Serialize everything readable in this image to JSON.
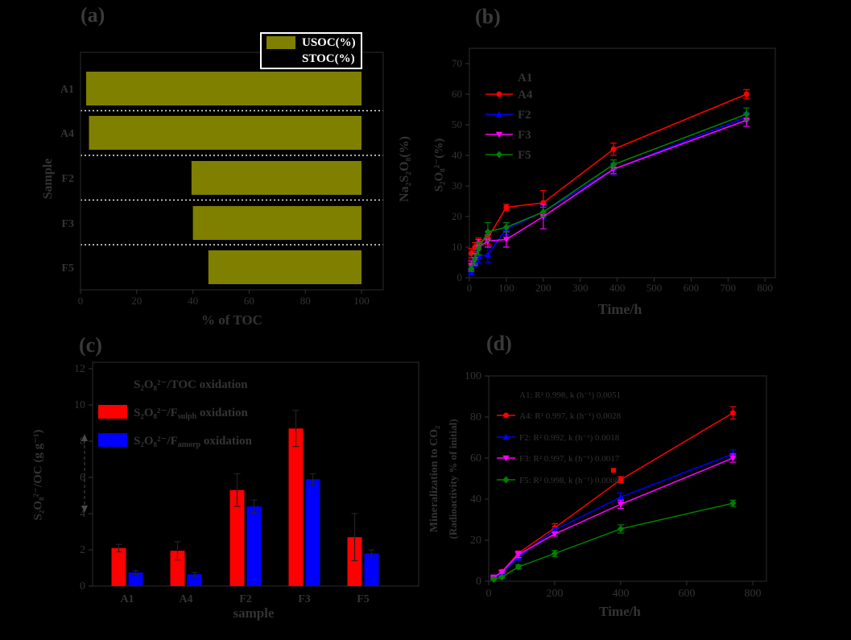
{
  "page": {
    "background": "#000000",
    "text_color": "#333333",
    "grid_color": "#e8e8e8"
  },
  "chart_data": [
    {
      "id": "a",
      "type": "bar",
      "tag": "(a)",
      "xlabel": "% of TOC",
      "ylabel": "Sample",
      "ylabel_right": "Na₂S₂O₈(%)",
      "categories": [
        "A1",
        "A4",
        "F2",
        "F3",
        "F5"
      ],
      "xlim": [
        0,
        100
      ],
      "xticks": [
        0,
        20,
        40,
        60,
        80,
        100
      ],
      "grid": "white dotted separators between categories, legend framed white top-right",
      "legend": [
        {
          "label": "USOC(%)",
          "color": "#7f7f00"
        },
        {
          "label": "STOC(%)",
          "color": "#000000"
        }
      ],
      "series": [
        {
          "name": "STOC(%)",
          "color": "#000000",
          "values": [
            2,
            3,
            39.5,
            40,
            45.5
          ]
        },
        {
          "name": "USOC(%)",
          "color": "#7f7f00",
          "values": [
            98,
            97,
            60.5,
            60,
            54.5
          ]
        }
      ]
    },
    {
      "id": "b",
      "type": "line",
      "tag": "(b)",
      "xlabel": "Time/h",
      "ylabel": "S₂O₈²⁻(%)",
      "xlim": [
        0,
        830
      ],
      "xticks": [
        0,
        100,
        200,
        300,
        400,
        500,
        600,
        700,
        800
      ],
      "ylim": [
        0,
        72
      ],
      "yticks": [
        0,
        10,
        20,
        30,
        40,
        50,
        60,
        70
      ],
      "legend_position": "upper-left inside plot",
      "x": [
        5,
        15,
        25,
        50,
        100,
        200,
        390,
        750
      ],
      "series": [
        {
          "name": "A1",
          "color": "#000000",
          "marker": "square",
          "y": [],
          "err": []
        },
        {
          "name": "A4",
          "color": "#ff0000",
          "marker": "circle",
          "y": [
            8,
            10,
            11.5,
            13,
            23,
            24.5,
            42,
            60
          ],
          "err": [
            1.5,
            1.5,
            1.5,
            2,
            1,
            4,
            2,
            1.5
          ]
        },
        {
          "name": "F2",
          "color": "#0000ff",
          "marker": "triangle-up",
          "y": [
            2,
            5,
            7,
            7.5,
            16,
            21.5,
            35.5,
            52.5
          ],
          "err": [
            1,
            1.5,
            2,
            2.5,
            2,
            2,
            2,
            1.5
          ]
        },
        {
          "name": "F3",
          "color": "#ff00ff",
          "marker": "triangle-down",
          "y": [
            4,
            6,
            10,
            12,
            12.5,
            20,
            35.5,
            51.5
          ],
          "err": [
            1.5,
            2,
            2.5,
            2,
            2.5,
            4,
            1.5,
            2
          ]
        },
        {
          "name": "F5",
          "color": "#008000",
          "marker": "diamond",
          "y": [
            3,
            6,
            9.5,
            15,
            16.5,
            21.5,
            37,
            53.5
          ],
          "err": [
            1,
            1.5,
            2,
            3,
            1.5,
            1.5,
            1.5,
            2
          ]
        }
      ]
    },
    {
      "id": "c",
      "type": "bar",
      "tag": "(c)",
      "xlabel": "sample",
      "ylabel": "S₂O₈²⁻/OC (g g⁻¹)",
      "categories": [
        "A1",
        "A4",
        "F2",
        "F3",
        "F5"
      ],
      "ylim": [
        0,
        12
      ],
      "yticks": [
        0,
        2,
        4,
        6,
        8,
        10,
        12
      ],
      "legend": [
        {
          "pre": "S₂O₈²⁻/TOC oxidation",
          "sub": "",
          "post": "",
          "color": "#000000"
        },
        {
          "pre": "S₂O₈²⁻/F",
          "sub": "sulph",
          "post": " oxidation",
          "color": "#ff0000"
        },
        {
          "pre": "S₂O₈²⁻/F",
          "sub": "amorp",
          "post": " oxidation",
          "color": "#0000ff"
        }
      ],
      "series": [
        {
          "name": "S₂O₈²⁻/F_sulph oxidation",
          "color": "#ff0000",
          "values": [
            2.1,
            1.95,
            5.3,
            8.7,
            2.7
          ],
          "err": [
            0.2,
            0.5,
            0.9,
            1.0,
            1.3
          ]
        },
        {
          "name": "S₂O₈²⁻/F_amorp oxidation",
          "color": "#0000ff",
          "values": [
            0.75,
            0.65,
            4.4,
            5.9,
            1.8
          ],
          "err": [
            0.1,
            0.1,
            0.35,
            0.3,
            0.2
          ]
        }
      ],
      "annotation": "vertical dashed double-headed arrow left of y-axis between ~4 and ~8"
    },
    {
      "id": "d",
      "type": "line",
      "tag": "(d)",
      "xlabel": "Time/h",
      "ylabel": "Mineralization to CO₂",
      "ylabel2": "(Radioactivity % of initial)",
      "xlim": [
        0,
        840
      ],
      "xticks": [
        0,
        200,
        400,
        600,
        800
      ],
      "ylim": [
        0,
        100
      ],
      "yticks": [
        0,
        20,
        40,
        60,
        80,
        100
      ],
      "legend_position": "upper-left inside plot",
      "x": [
        15,
        40,
        90,
        200,
        400,
        740
      ],
      "series": [
        {
          "name": "A1: R² 0.998, k (h⁻¹) 0.0051",
          "color": "#000000",
          "marker": "square",
          "y": [],
          "err": []
        },
        {
          "name": "A4: R² 0.997, k (h⁻¹) 0.0028",
          "color": "#ff0000",
          "marker": "circle",
          "y": [
            1.5,
            4.7,
            13.7,
            26,
            49.5,
            82
          ],
          "err": [
            0.4,
            0.5,
            1,
            2,
            1.5,
            3
          ]
        },
        {
          "name": "F2: R² 0.992, k (h⁻¹) 0.0018",
          "color": "#0000ff",
          "marker": "triangle-up",
          "y": [
            1.5,
            4,
            11.8,
            25,
            41,
            62
          ],
          "err": [
            0.4,
            0.6,
            1.5,
            1,
            2,
            2
          ]
        },
        {
          "name": "F3: R² 0.997, k (h⁻¹) 0.0017",
          "color": "#ff00ff",
          "marker": "triangle-down",
          "y": [
            2,
            4.5,
            13,
            23,
            37.5,
            60
          ],
          "err": [
            0.4,
            0.6,
            1.5,
            1,
            2,
            2
          ]
        },
        {
          "name": "F5: R² 0.998, k (h⁻¹) 0.0008",
          "color": "#008000",
          "marker": "diamond",
          "y": [
            1,
            2,
            7,
            13.5,
            25.5,
            38
          ],
          "err": [
            0.3,
            0.5,
            1,
            1.5,
            2,
            1.5
          ]
        }
      ],
      "outlier": {
        "series": "A4",
        "color": "#ff0000",
        "marker": "square",
        "x": 378,
        "y": 54
      }
    }
  ]
}
